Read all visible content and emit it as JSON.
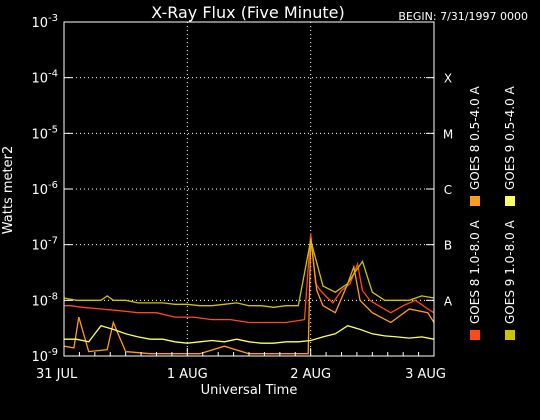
{
  "chart_data": {
    "type": "line",
    "title": "X-Ray Flux (Five Minute)",
    "begin_label": "BEGIN: 7/31/1997 0000",
    "xlabel": "Universal Time",
    "ylabel": "Watts meter2",
    "y_scale": "log",
    "ylim": [
      "1e-9",
      "1e-3"
    ],
    "y_ticks": [
      {
        "base": "10",
        "exp": "-9",
        "value": 1e-09
      },
      {
        "base": "10",
        "exp": "-8",
        "value": 1e-08
      },
      {
        "base": "10",
        "exp": "-7",
        "value": 1e-07
      },
      {
        "base": "10",
        "exp": "-6",
        "value": 1e-06
      },
      {
        "base": "10",
        "exp": "-5",
        "value": 1e-05
      },
      {
        "base": "10",
        "exp": "-4",
        "value": 0.0001
      },
      {
        "base": "10",
        "exp": "-3",
        "value": 0.001
      }
    ],
    "x_ticks": [
      "31 JUL",
      "1 AUG",
      "2 AUG",
      "3 AUG"
    ],
    "x_range_days": [
      0,
      3
    ],
    "flare_classes": [
      {
        "label": "A",
        "value": 1e-08
      },
      {
        "label": "B",
        "value": 1e-07
      },
      {
        "label": "C",
        "value": 1e-06
      },
      {
        "label": "M",
        "value": 1e-05
      },
      {
        "label": "X",
        "value": 0.0001
      }
    ],
    "grid": "dotted horizontal at decades, vertical at day boundaries",
    "legend_placement": "right-vertical",
    "series": [
      {
        "name": "GOES 8 1.0-8.0 A",
        "color": "#ff4a1a",
        "x": [
          0,
          0.05,
          0.15,
          0.3,
          0.45,
          0.6,
          0.75,
          0.9,
          1.05,
          1.2,
          1.35,
          1.5,
          1.65,
          1.8,
          1.95,
          2.0,
          2.04,
          2.08,
          2.12,
          2.18,
          2.25,
          2.32,
          2.38,
          2.42,
          2.48,
          2.55,
          2.65,
          2.75,
          2.85,
          2.95,
          3.0
        ],
        "y": [
          8e-09,
          8e-09,
          7.5e-09,
          7e-09,
          6.5e-09,
          6e-09,
          6e-09,
          5e-09,
          5e-09,
          4.5e-09,
          4.5e-09,
          4e-09,
          4e-09,
          4e-09,
          4.5e-09,
          1.6e-07,
          2e-08,
          1.5e-08,
          1.2e-08,
          9e-09,
          1.5e-08,
          2e-08,
          4.5e-08,
          1.5e-08,
          1e-08,
          8e-09,
          6e-09,
          8e-09,
          1e-08,
          7e-09,
          6e-09
        ]
      },
      {
        "name": "GOES 8 0.5-4.0 A",
        "color": "#ff9c1f",
        "x": [
          0,
          0.08,
          0.12,
          0.2,
          0.35,
          0.4,
          0.5,
          0.7,
          0.9,
          1.1,
          1.3,
          1.5,
          1.7,
          1.9,
          1.98,
          2.0,
          2.05,
          2.1,
          2.2,
          2.3,
          2.35,
          2.4,
          2.5,
          2.65,
          2.8,
          2.95,
          3.0
        ],
        "y": [
          1.5e-09,
          1.4e-09,
          5e-09,
          1.2e-09,
          1.3e-09,
          4e-09,
          1.2e-09,
          1.1e-09,
          1.1e-09,
          1.1e-09,
          1.5e-09,
          1.1e-09,
          1.1e-09,
          1.1e-09,
          1.1e-09,
          1.3e-07,
          1.5e-08,
          8e-09,
          6e-09,
          2e-08,
          4e-08,
          1e-08,
          6e-09,
          4e-09,
          7e-09,
          6e-09,
          4e-09
        ]
      },
      {
        "name": "GOES 9 1.0-8.0 A",
        "color": "#ccc400",
        "x": [
          0,
          0.1,
          0.2,
          0.3,
          0.35,
          0.4,
          0.5,
          0.6,
          0.7,
          0.8,
          0.9,
          1.0,
          1.1,
          1.2,
          1.3,
          1.4,
          1.5,
          1.6,
          1.7,
          1.8,
          1.9,
          2.0,
          2.1,
          2.2,
          2.3,
          2.35,
          2.42,
          2.5,
          2.6,
          2.7,
          2.8,
          2.9,
          3.0
        ],
        "y": [
          1.1e-08,
          1e-08,
          1e-08,
          1e-08,
          1.2e-08,
          1e-08,
          1e-08,
          9e-09,
          9e-09,
          9e-09,
          8.5e-09,
          8.5e-09,
          8e-09,
          8e-09,
          8.5e-09,
          9e-09,
          8e-09,
          8e-09,
          7.5e-09,
          8e-09,
          8e-09,
          1.2e-07,
          1.8e-08,
          1.4e-08,
          2e-08,
          3e-08,
          5e-08,
          1.4e-08,
          1e-08,
          1e-08,
          1e-08,
          1.2e-08,
          1.1e-08
        ]
      },
      {
        "name": "GOES 9 0.5-4.0 A",
        "color": "#ffff66",
        "x": [
          0,
          0.1,
          0.2,
          0.3,
          0.4,
          0.5,
          0.6,
          0.7,
          0.8,
          0.9,
          1.0,
          1.1,
          1.2,
          1.3,
          1.4,
          1.5,
          1.6,
          1.7,
          1.8,
          1.9,
          2.0,
          2.1,
          2.2,
          2.3,
          2.4,
          2.5,
          2.6,
          2.7,
          2.8,
          2.9,
          3.0
        ],
        "y": [
          2e-09,
          2e-09,
          1.8e-09,
          3.5e-09,
          3e-09,
          2.5e-09,
          2.2e-09,
          2e-09,
          2e-09,
          1.8e-09,
          1.7e-09,
          1.8e-09,
          1.9e-09,
          1.8e-09,
          2e-09,
          1.8e-09,
          1.7e-09,
          1.7e-09,
          1.8e-09,
          1.8e-09,
          1.9e-09,
          2.2e-09,
          2.5e-09,
          3.5e-09,
          3e-09,
          2.5e-09,
          2.3e-09,
          2.2e-09,
          2.1e-09,
          2.2e-09,
          2e-09
        ]
      }
    ]
  }
}
